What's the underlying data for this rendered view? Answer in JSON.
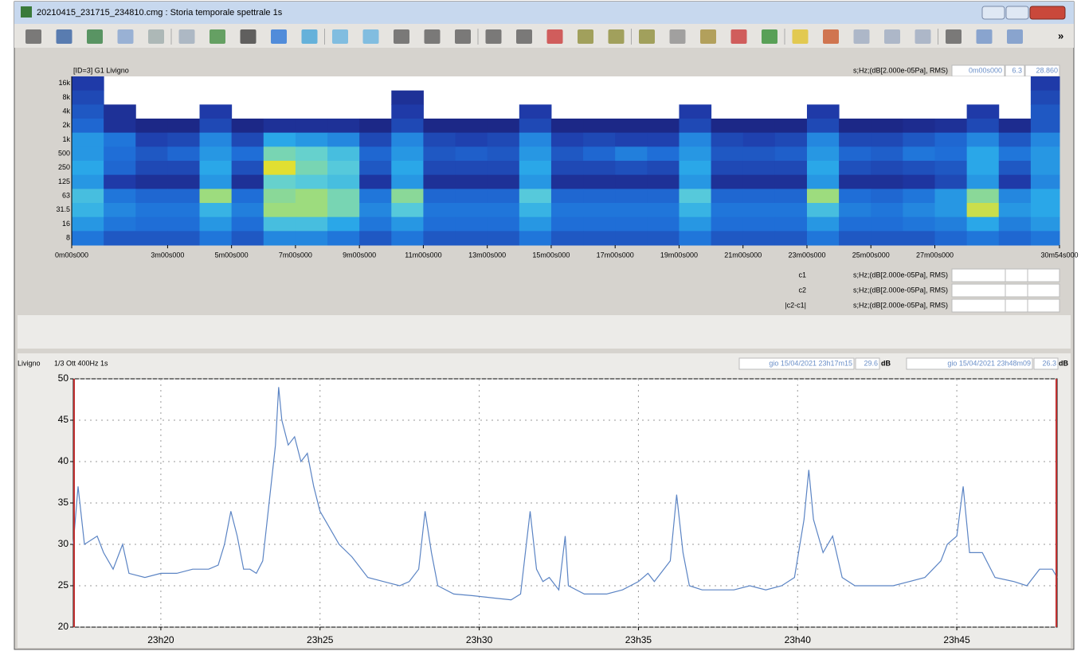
{
  "window": {
    "title": "20210415_231715_234810.cmg : Storia temporale spettrale 1s"
  },
  "toolbar": {
    "more": "»"
  },
  "spectrogram_panel": {
    "title": "[ID=3] G1 Livigno",
    "units": "s;Hz;(dB[2.000e-05Pa], RMS)",
    "cursor": {
      "time": "0m00s000",
      "frequency": "6.3",
      "level": "28.860"
    },
    "cursor_rows": [
      {
        "name": "c1",
        "units": "s;Hz;(dB[2.000e-05Pa], RMS)"
      },
      {
        "name": "c2",
        "units": "s;Hz;(dB[2.000e-05Pa], RMS)"
      },
      {
        "name": "|c2-c1|",
        "units": "s;Hz;(dB[2.000e-05Pa], RMS)"
      }
    ]
  },
  "line_panel": {
    "station": "Livigno",
    "band": "1/3 Ott 400Hz 1s",
    "start": {
      "time": "gio 15/04/2021 23h17m15",
      "level": "29.6",
      "unit": "dB"
    },
    "end": {
      "time": "gio 15/04/2021 23h48m09",
      "level": "26.3",
      "unit": "dB"
    }
  },
  "chart_data": [
    {
      "type": "heatmap",
      "x": [
        0,
        1,
        2,
        3,
        4,
        5,
        6,
        7,
        8,
        9,
        10,
        11,
        12,
        13,
        14,
        15,
        16,
        17,
        18,
        19,
        20,
        21,
        22,
        23,
        24,
        25,
        26,
        27,
        28,
        29,
        30
      ],
      "xlim": [
        0,
        30.9
      ],
      "xticks": [
        {
          "value": 0,
          "label": "0m00s000"
        },
        {
          "value": 3,
          "label": "3m00s000"
        },
        {
          "value": 5,
          "label": "5m00s000"
        },
        {
          "value": 7,
          "label": "7m00s000"
        },
        {
          "value": 9,
          "label": "9m00s000"
        },
        {
          "value": 11,
          "label": "11m00s000"
        },
        {
          "value": 13,
          "label": "13m00s000"
        },
        {
          "value": 15,
          "label": "15m00s000"
        },
        {
          "value": 17,
          "label": "17m00s000"
        },
        {
          "value": 19,
          "label": "19m00s000"
        },
        {
          "value": 21,
          "label": "21m00s000"
        },
        {
          "value": 23,
          "label": "23m00s000"
        },
        {
          "value": 25,
          "label": "25m00s000"
        },
        {
          "value": 27,
          "label": "27m00s000"
        },
        {
          "value": 30.9,
          "label": "30m54s000"
        }
      ],
      "categories": [
        "16k",
        "8k",
        "4k",
        "2k",
        "1k",
        "500",
        "250",
        "125",
        "63",
        "31.5",
        "16",
        "8"
      ],
      "values": [
        [
          18,
          null,
          null,
          null,
          null,
          null,
          null,
          null,
          null,
          null,
          null,
          null,
          null,
          null,
          null,
          null,
          null,
          null,
          null,
          null,
          null,
          null,
          null,
          null,
          null,
          null,
          null,
          null,
          null,
          null,
          18
        ],
        [
          20,
          null,
          null,
          null,
          null,
          null,
          null,
          null,
          null,
          null,
          16,
          null,
          null,
          null,
          null,
          null,
          null,
          null,
          null,
          null,
          null,
          null,
          null,
          null,
          null,
          null,
          null,
          null,
          null,
          null,
          20
        ],
        [
          22,
          16,
          null,
          null,
          18,
          null,
          null,
          null,
          null,
          null,
          18,
          null,
          null,
          null,
          18,
          null,
          null,
          null,
          null,
          18,
          null,
          null,
          null,
          18,
          null,
          null,
          null,
          null,
          18,
          null,
          22
        ],
        [
          24,
          16,
          14,
          14,
          20,
          14,
          16,
          16,
          16,
          14,
          20,
          14,
          14,
          14,
          20,
          14,
          14,
          14,
          14,
          20,
          14,
          14,
          14,
          20,
          14,
          14,
          15,
          16,
          20,
          15,
          22
        ],
        [
          30,
          26,
          19,
          20,
          28,
          20,
          32,
          30,
          28,
          20,
          28,
          20,
          19,
          20,
          28,
          19,
          20,
          19,
          19,
          28,
          20,
          19,
          20,
          28,
          20,
          20,
          22,
          24,
          28,
          22,
          28
        ],
        [
          30,
          25,
          22,
          24,
          30,
          25,
          42,
          40,
          36,
          24,
          30,
          22,
          23,
          22,
          30,
          22,
          24,
          27,
          25,
          30,
          22,
          22,
          23,
          30,
          24,
          23,
          26,
          25,
          32,
          26,
          30
        ],
        [
          32,
          24,
          20,
          20,
          32,
          21,
          52,
          42,
          38,
          22,
          32,
          20,
          20,
          20,
          32,
          20,
          20,
          21,
          20,
          32,
          20,
          20,
          20,
          32,
          21,
          20,
          21,
          22,
          32,
          22,
          30
        ],
        [
          30,
          18,
          16,
          16,
          30,
          16,
          40,
          38,
          36,
          17,
          30,
          16,
          16,
          16,
          30,
          16,
          16,
          16,
          16,
          30,
          16,
          16,
          16,
          30,
          16,
          16,
          17,
          20,
          30,
          18,
          28
        ],
        [
          36,
          26,
          24,
          24,
          46,
          25,
          44,
          46,
          42,
          26,
          44,
          24,
          24,
          24,
          38,
          24,
          24,
          24,
          24,
          38,
          24,
          24,
          24,
          46,
          25,
          24,
          26,
          30,
          44,
          28,
          32
        ],
        [
          34,
          28,
          26,
          26,
          34,
          27,
          46,
          46,
          42,
          28,
          38,
          26,
          26,
          26,
          34,
          26,
          26,
          26,
          26,
          34,
          26,
          26,
          26,
          36,
          27,
          26,
          28,
          30,
          50,
          30,
          32
        ],
        [
          30,
          26,
          25,
          25,
          30,
          25,
          36,
          36,
          32,
          26,
          30,
          25,
          25,
          25,
          30,
          25,
          25,
          25,
          25,
          30,
          25,
          25,
          25,
          30,
          25,
          25,
          26,
          27,
          32,
          27,
          30
        ],
        [
          26,
          22,
          22,
          22,
          26,
          22,
          28,
          28,
          26,
          22,
          26,
          22,
          22,
          22,
          26,
          22,
          22,
          22,
          22,
          26,
          22,
          22,
          22,
          26,
          22,
          22,
          22,
          24,
          26,
          24,
          26
        ]
      ],
      "clim": [
        10.95,
        74.53
      ],
      "cticks": [
        10.95,
        15,
        20,
        25,
        30,
        35,
        40,
        45,
        50,
        55,
        60,
        65,
        70,
        74.53
      ],
      "colors": [
        "#1a1a6e",
        "#1f3aa8",
        "#1f6fd8",
        "#2aa8e8",
        "#5fd0d8",
        "#9fdc7a",
        "#f0e020",
        "#f5a623",
        "#e8401c",
        "#7a0a0a"
      ]
    },
    {
      "type": "line",
      "color": "#5b84c4",
      "grid": true,
      "x": [
        17.25,
        17.4,
        17.6,
        18,
        18.2,
        18.5,
        18.8,
        19,
        19.5,
        20,
        20.5,
        21,
        21.5,
        21.8,
        22,
        22.2,
        22.4,
        22.6,
        22.8,
        23,
        23.2,
        23.4,
        23.6,
        23.7,
        23.8,
        24,
        24.2,
        24.4,
        24.6,
        24.8,
        25,
        25.3,
        25.6,
        26,
        26.5,
        27,
        27.5,
        27.8,
        28.1,
        28.3,
        28.5,
        28.7,
        29.2,
        29.8,
        30.5,
        31,
        31.3,
        31.6,
        31.8,
        32,
        32.2,
        32.5,
        32.7,
        32.8,
        33.3,
        34,
        34.5,
        35,
        35.3,
        35.5,
        36,
        36.2,
        36.4,
        36.6,
        37,
        37.5,
        38,
        38.5,
        39,
        39.5,
        39.9,
        40.2,
        40.35,
        40.5,
        40.8,
        41.1,
        41.4,
        41.8,
        42.5,
        43,
        43.5,
        44,
        44.5,
        44.7,
        45,
        45.2,
        45.4,
        45.8,
        46.2,
        46.8,
        47.2,
        47.6,
        48,
        48.15
      ],
      "values": [
        30,
        37,
        30,
        31,
        29,
        27,
        30,
        26.5,
        26,
        26.5,
        26.5,
        27,
        27,
        27.5,
        30,
        34,
        31,
        27,
        27,
        26.5,
        28,
        35,
        42,
        49,
        45,
        42,
        43,
        40,
        41,
        37,
        34,
        32,
        30,
        28.5,
        26,
        25.5,
        25,
        25.5,
        27,
        34,
        29,
        25,
        24,
        23.8,
        23.5,
        23.3,
        24,
        34,
        27,
        25.5,
        26,
        24.5,
        31,
        25,
        24,
        24,
        24.5,
        25.5,
        26.5,
        25.5,
        28,
        36,
        29,
        25,
        24.5,
        24.5,
        24.5,
        25,
        24.5,
        25,
        26,
        33,
        39,
        33,
        29,
        31,
        26,
        25,
        25,
        25,
        25.5,
        26,
        28,
        30,
        31,
        37,
        29,
        29,
        26,
        25.5,
        25,
        27,
        27,
        26
      ],
      "xlim": [
        17.25,
        48.15
      ],
      "xticks": [
        {
          "value": 20,
          "label": "23h20"
        },
        {
          "value": 25,
          "label": "23h25"
        },
        {
          "value": 30,
          "label": "23h30"
        },
        {
          "value": 35,
          "label": "23h35"
        },
        {
          "value": 40,
          "label": "23h40"
        },
        {
          "value": 45,
          "label": "23h45"
        }
      ],
      "ylim": [
        20,
        50
      ],
      "yticks": [
        20,
        25,
        30,
        35,
        40,
        45,
        50
      ]
    }
  ]
}
